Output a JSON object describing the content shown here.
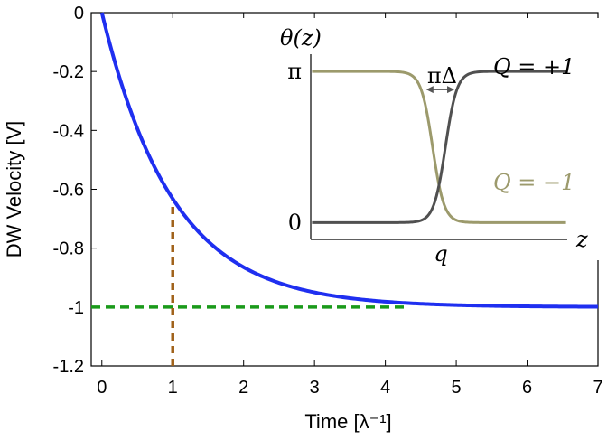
{
  "chart_data": [
    {
      "type": "line",
      "title": "",
      "xlabel": "Time [λ⁻¹]",
      "ylabel": "DW Velocity [V]",
      "xlim": [
        -0.15,
        7
      ],
      "ylim": [
        -1.2,
        0
      ],
      "xticks": [
        0,
        1,
        2,
        3,
        4,
        5,
        6,
        7
      ],
      "yticks": [
        0,
        -0.2,
        -0.4,
        -0.6,
        -0.8,
        -1,
        -1.2
      ],
      "xtick_labels": [
        "0",
        "1",
        "2",
        "3",
        "4",
        "5",
        "6",
        "7"
      ],
      "ytick_labels": [
        "0",
        "-0.2",
        "-0.4",
        "-0.6",
        "-0.8",
        "-1",
        "-1.2"
      ],
      "grid": false,
      "series": [
        {
          "style": "solid",
          "color": "#1f2ff0",
          "function": "y = exp(-x) - 1",
          "x": [
            0,
            0.25,
            0.5,
            0.75,
            1,
            1.5,
            2,
            2.5,
            3,
            3.5,
            4,
            4.5,
            5,
            5.5,
            6,
            6.5,
            7
          ],
          "y": [
            0,
            -0.221,
            -0.393,
            -0.528,
            -0.632,
            -0.777,
            -0.865,
            -0.918,
            -0.95,
            -0.97,
            -0.982,
            -0.989,
            -0.993,
            -0.996,
            -0.998,
            -0.998,
            -0.999
          ]
        }
      ],
      "reference_lines": [
        {
          "orientation": "horizontal",
          "y": -1,
          "x_range": [
            -0.15,
            4.3
          ],
          "style": "dashed",
          "color": "#1a9a1a"
        },
        {
          "orientation": "vertical",
          "x": 1,
          "y_range": [
            -1.2,
            -0.632
          ],
          "style": "dashed",
          "color": "#a0621a"
        }
      ]
    },
    {
      "type": "line",
      "inset": true,
      "ylabel": "θ(z)",
      "xlabel": "z",
      "yticks": [
        0,
        3.14159
      ],
      "ytick_labels": [
        "0",
        "π"
      ],
      "xtick_labels": [
        "q"
      ],
      "annotation": "πΔ",
      "xlim": [
        -1,
        1
      ],
      "ylim": [
        -0.35,
        3.5
      ],
      "series": [
        {
          "name": "Q = +1",
          "color": "#505050",
          "function": "θ = π/(1+exp(-(z-0.05)/0.045))"
        },
        {
          "name": "Q = −1",
          "color": "#9c9a6c",
          "function": "θ = π/(1+exp((z+0.05)/0.045))"
        }
      ]
    }
  ]
}
